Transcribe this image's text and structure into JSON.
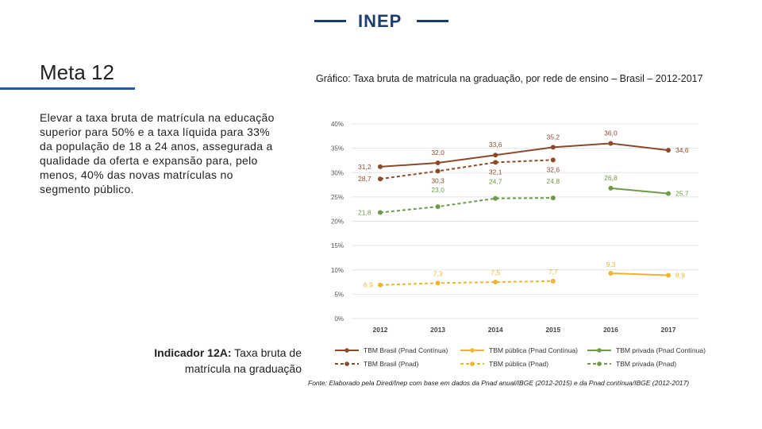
{
  "header": {
    "logo_text": "INEP"
  },
  "slide": {
    "title": "Meta 12",
    "goal_text": "Elevar a taxa bruta de matrícula na educação superior para 50% e a taxa líquida para 33% da população de 18 a 24 anos, assegurada a qualidade da oferta e expansão para, pelo menos, 40% das novas matrículas no segmento público.",
    "indicator_bold": "Indicador 12A:",
    "indicator_text": "Taxa bruta de matrícula na graduação",
    "source": "Fonte: Elaborado pela Dired/Inep com base em dados da Pnad anual/IBGE (2012-2015) e da Pnad contínua/IBGE (2012-2017)"
  },
  "colors": {
    "brasil": "#8b4a2b",
    "publica": "#f0b433",
    "privada": "#6f9a4a",
    "axis_text": "#555555",
    "grid": "#e4e4e4",
    "brand": "#1d3d6e"
  },
  "chart_data": {
    "type": "line",
    "title": "Gráfico: Taxa bruta de matrícula na graduação, por rede de ensino – Brasil – 2012-2017",
    "categories": [
      "2012",
      "2013",
      "2014",
      "2015",
      "2016",
      "2017"
    ],
    "ylim": [
      0,
      40
    ],
    "yticks": [
      0,
      5,
      10,
      15,
      20,
      25,
      30,
      35,
      40
    ],
    "ytick_labels": [
      "0%",
      "5%",
      "10%",
      "15%",
      "20%",
      "25%",
      "30%",
      "35%",
      "40%"
    ],
    "series": [
      {
        "name": "TBM Brasil (Pnad Contínua)",
        "key": "brasil",
        "dashed": false,
        "values": [
          31.2,
          32.0,
          33.6,
          35.2,
          36.0,
          34.6
        ],
        "labels": [
          "31,2",
          "32,0",
          "33,6",
          "35,2",
          "36,0",
          "34,6"
        ]
      },
      {
        "name": "TBM pública (Pnad Contínua)",
        "key": "publica",
        "dashed": false,
        "values": [
          null,
          null,
          null,
          null,
          9.3,
          8.9
        ],
        "labels": [
          null,
          null,
          null,
          null,
          "9,3",
          "8,9"
        ]
      },
      {
        "name": "TBM privada (Pnad Contínua)",
        "key": "privada",
        "dashed": false,
        "values": [
          null,
          null,
          null,
          null,
          26.8,
          25.7
        ],
        "labels": [
          null,
          null,
          null,
          null,
          "26,8",
          "25,7"
        ]
      },
      {
        "name": "TBM Brasil (Pnad)",
        "key": "brasil",
        "dashed": true,
        "values": [
          28.7,
          30.3,
          32.1,
          32.6,
          null,
          null
        ],
        "labels": [
          "28,7",
          "30,3",
          "32,1",
          "32,6",
          null,
          null
        ]
      },
      {
        "name": "TBM pública (Pnad)",
        "key": "publica",
        "dashed": true,
        "values": [
          6.9,
          7.3,
          7.5,
          7.7,
          null,
          null
        ],
        "labels": [
          "6,9",
          "7,3",
          "7,5",
          "7,7",
          null,
          null
        ]
      },
      {
        "name": "TBM privada (Pnad)",
        "key": "privada",
        "dashed": true,
        "values": [
          21.8,
          23.0,
          24.7,
          24.8,
          null,
          null
        ],
        "labels": [
          "21,8",
          "23,0",
          "24,7",
          "24,8",
          null,
          null
        ]
      }
    ]
  }
}
